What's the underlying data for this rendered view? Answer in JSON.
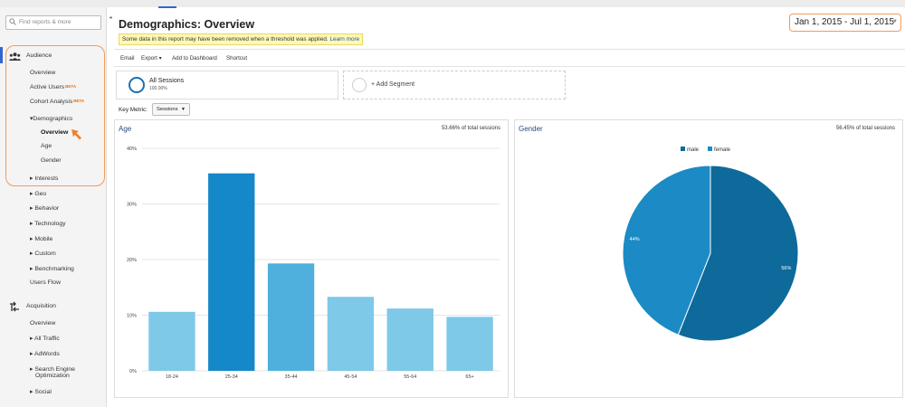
{
  "sidebar": {
    "search_placeholder": "Find reports & more",
    "items": [
      {
        "label": "Audience"
      },
      {
        "label": "Overview"
      },
      {
        "label": "Active Users",
        "badge": "BETA"
      },
      {
        "label": "Cohort Analysis",
        "badge": "BETA"
      },
      {
        "label": "Demographics",
        "prefix": "▾"
      },
      {
        "label": "Overview",
        "active": true
      },
      {
        "label": "Age"
      },
      {
        "label": "Gender"
      },
      {
        "label": "Interests",
        "prefix": "▸"
      },
      {
        "label": "Geo",
        "prefix": "▸"
      },
      {
        "label": "Behavior",
        "prefix": "▸"
      },
      {
        "label": "Technology",
        "prefix": "▸"
      },
      {
        "label": "Mobile",
        "prefix": "▸"
      },
      {
        "label": "Custom",
        "prefix": "▸"
      },
      {
        "label": "Benchmarking",
        "prefix": "▸"
      },
      {
        "label": "Users Flow"
      },
      {
        "label": "Acquisition"
      },
      {
        "label": "Overview"
      },
      {
        "label": "All Traffic",
        "prefix": "▸"
      },
      {
        "label": "AdWords",
        "prefix": "▸"
      },
      {
        "label": "Search Engine"
      },
      {
        "label": "Optimization"
      },
      {
        "label": "Social",
        "prefix": "▸"
      }
    ]
  },
  "header": {
    "title": "Demographics: Overview",
    "notice": "Some data in this report may have been removed when a threshold was applied.",
    "notice_link": "Learn more",
    "date_range": "Jan 1, 2015 - Jul 1, 2015"
  },
  "toolbar": {
    "email": "Email",
    "export": "Export ▾",
    "add_to_dashboard": "Add to Dashboard",
    "shortcut": "Shortcut"
  },
  "segments": {
    "name": "All Sessions",
    "percent": "100.00%",
    "add_label": "+ Add Segment"
  },
  "key_metric": {
    "label": "Key Metric:",
    "value": "Sessions"
  },
  "age_panel": {
    "title": "Age",
    "share": "53.66% of total sessions"
  },
  "gender_panel": {
    "title": "Gender",
    "share": "56.45% of total sessions"
  },
  "colors": {
    "accent": "#3366cc",
    "highlight": "#f39a5a",
    "bar_light": "#7ec8e8",
    "bar_dark": "#1488c8",
    "male": "#0e6a9a",
    "female": "#1c8ac4"
  },
  "icons": [
    "search-icon",
    "audience-icon",
    "acquisition-icon",
    "pointer-icon",
    "collapse-icon"
  ],
  "chart_data": [
    {
      "type": "bar",
      "title": "Age",
      "categories": [
        "18-24",
        "25-34",
        "35-44",
        "45-54",
        "55-64",
        "65+"
      ],
      "values": [
        10.6,
        35.5,
        19.3,
        13.3,
        11.2,
        9.7
      ],
      "y_ticks": [
        "0%",
        "10%",
        "20%",
        "30%",
        "40%"
      ],
      "ylim": [
        0,
        40
      ],
      "grid": true
    },
    {
      "type": "pie",
      "title": "Gender",
      "labels": [
        "male",
        "female"
      ],
      "values": [
        56,
        44
      ],
      "slice_labels": [
        "56%",
        "44%"
      ],
      "legend_position": "top"
    }
  ]
}
